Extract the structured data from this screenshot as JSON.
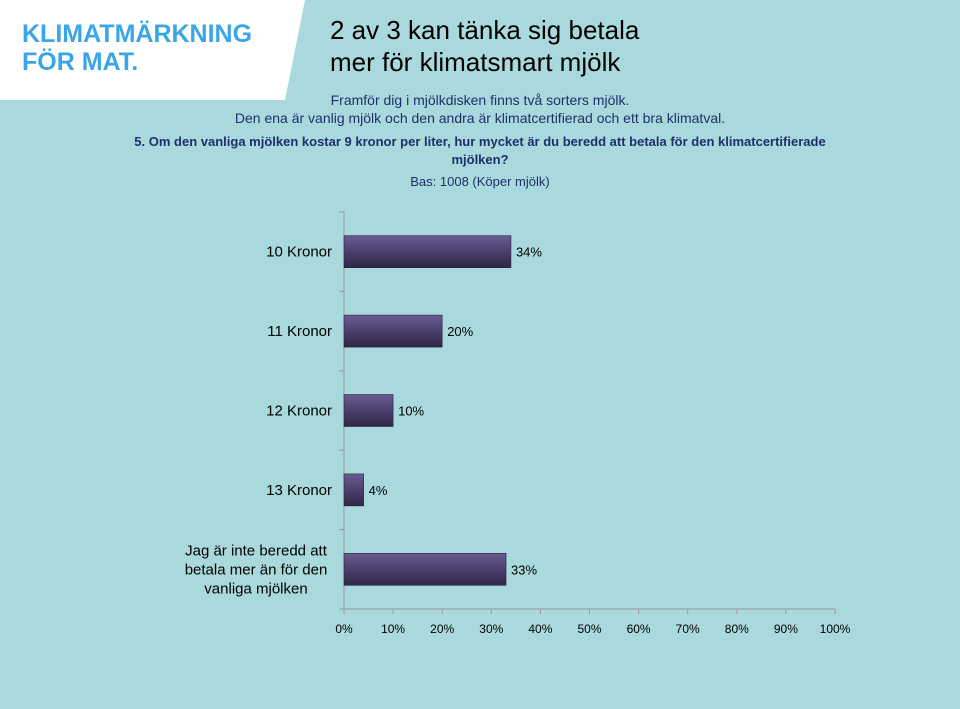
{
  "logo": {
    "line1": "KLIMATMÄRKNING",
    "line2": "FÖR MAT.",
    "bg_color": "#ffffff",
    "text_color": "#3aa6e8"
  },
  "title": {
    "line1": "2 av 3 kan tänka sig betala",
    "line2": "mer för klimatsmart mjölk"
  },
  "intro": {
    "line1": "Framför dig i mjölkdisken finns två sorters mjölk.",
    "line2": "Den ena är vanlig mjölk och den andra är klimatcertifierad och ett bra klimatval."
  },
  "question": "5. Om den vanliga mjölken kostar 9 kronor per liter, hur mycket är du beredd att betala för den klimatcertifierade mjölken?",
  "base": "Bas: 1008 (Köper mjölk)",
  "chart_data": {
    "type": "bar",
    "orientation": "horizontal",
    "categories": [
      [
        "10 Kronor"
      ],
      [
        "11 Kronor"
      ],
      [
        "12 Kronor"
      ],
      [
        "13 Kronor"
      ],
      [
        "Jag är inte beredd att",
        "betala mer än för den",
        "vanliga mjölken"
      ]
    ],
    "values": [
      34,
      20,
      10,
      4,
      33
    ],
    "value_labels": [
      "34%",
      "20%",
      "10%",
      "4%",
      "33%"
    ],
    "xlim": [
      0,
      100
    ],
    "xticks": [
      "0%",
      "10%",
      "20%",
      "30%",
      "40%",
      "50%",
      "60%",
      "70%",
      "80%",
      "90%",
      "100%"
    ],
    "grid": false,
    "legend": "none",
    "bar_color_top": "#6a5a93",
    "bar_color_bottom": "#2e2647"
  }
}
